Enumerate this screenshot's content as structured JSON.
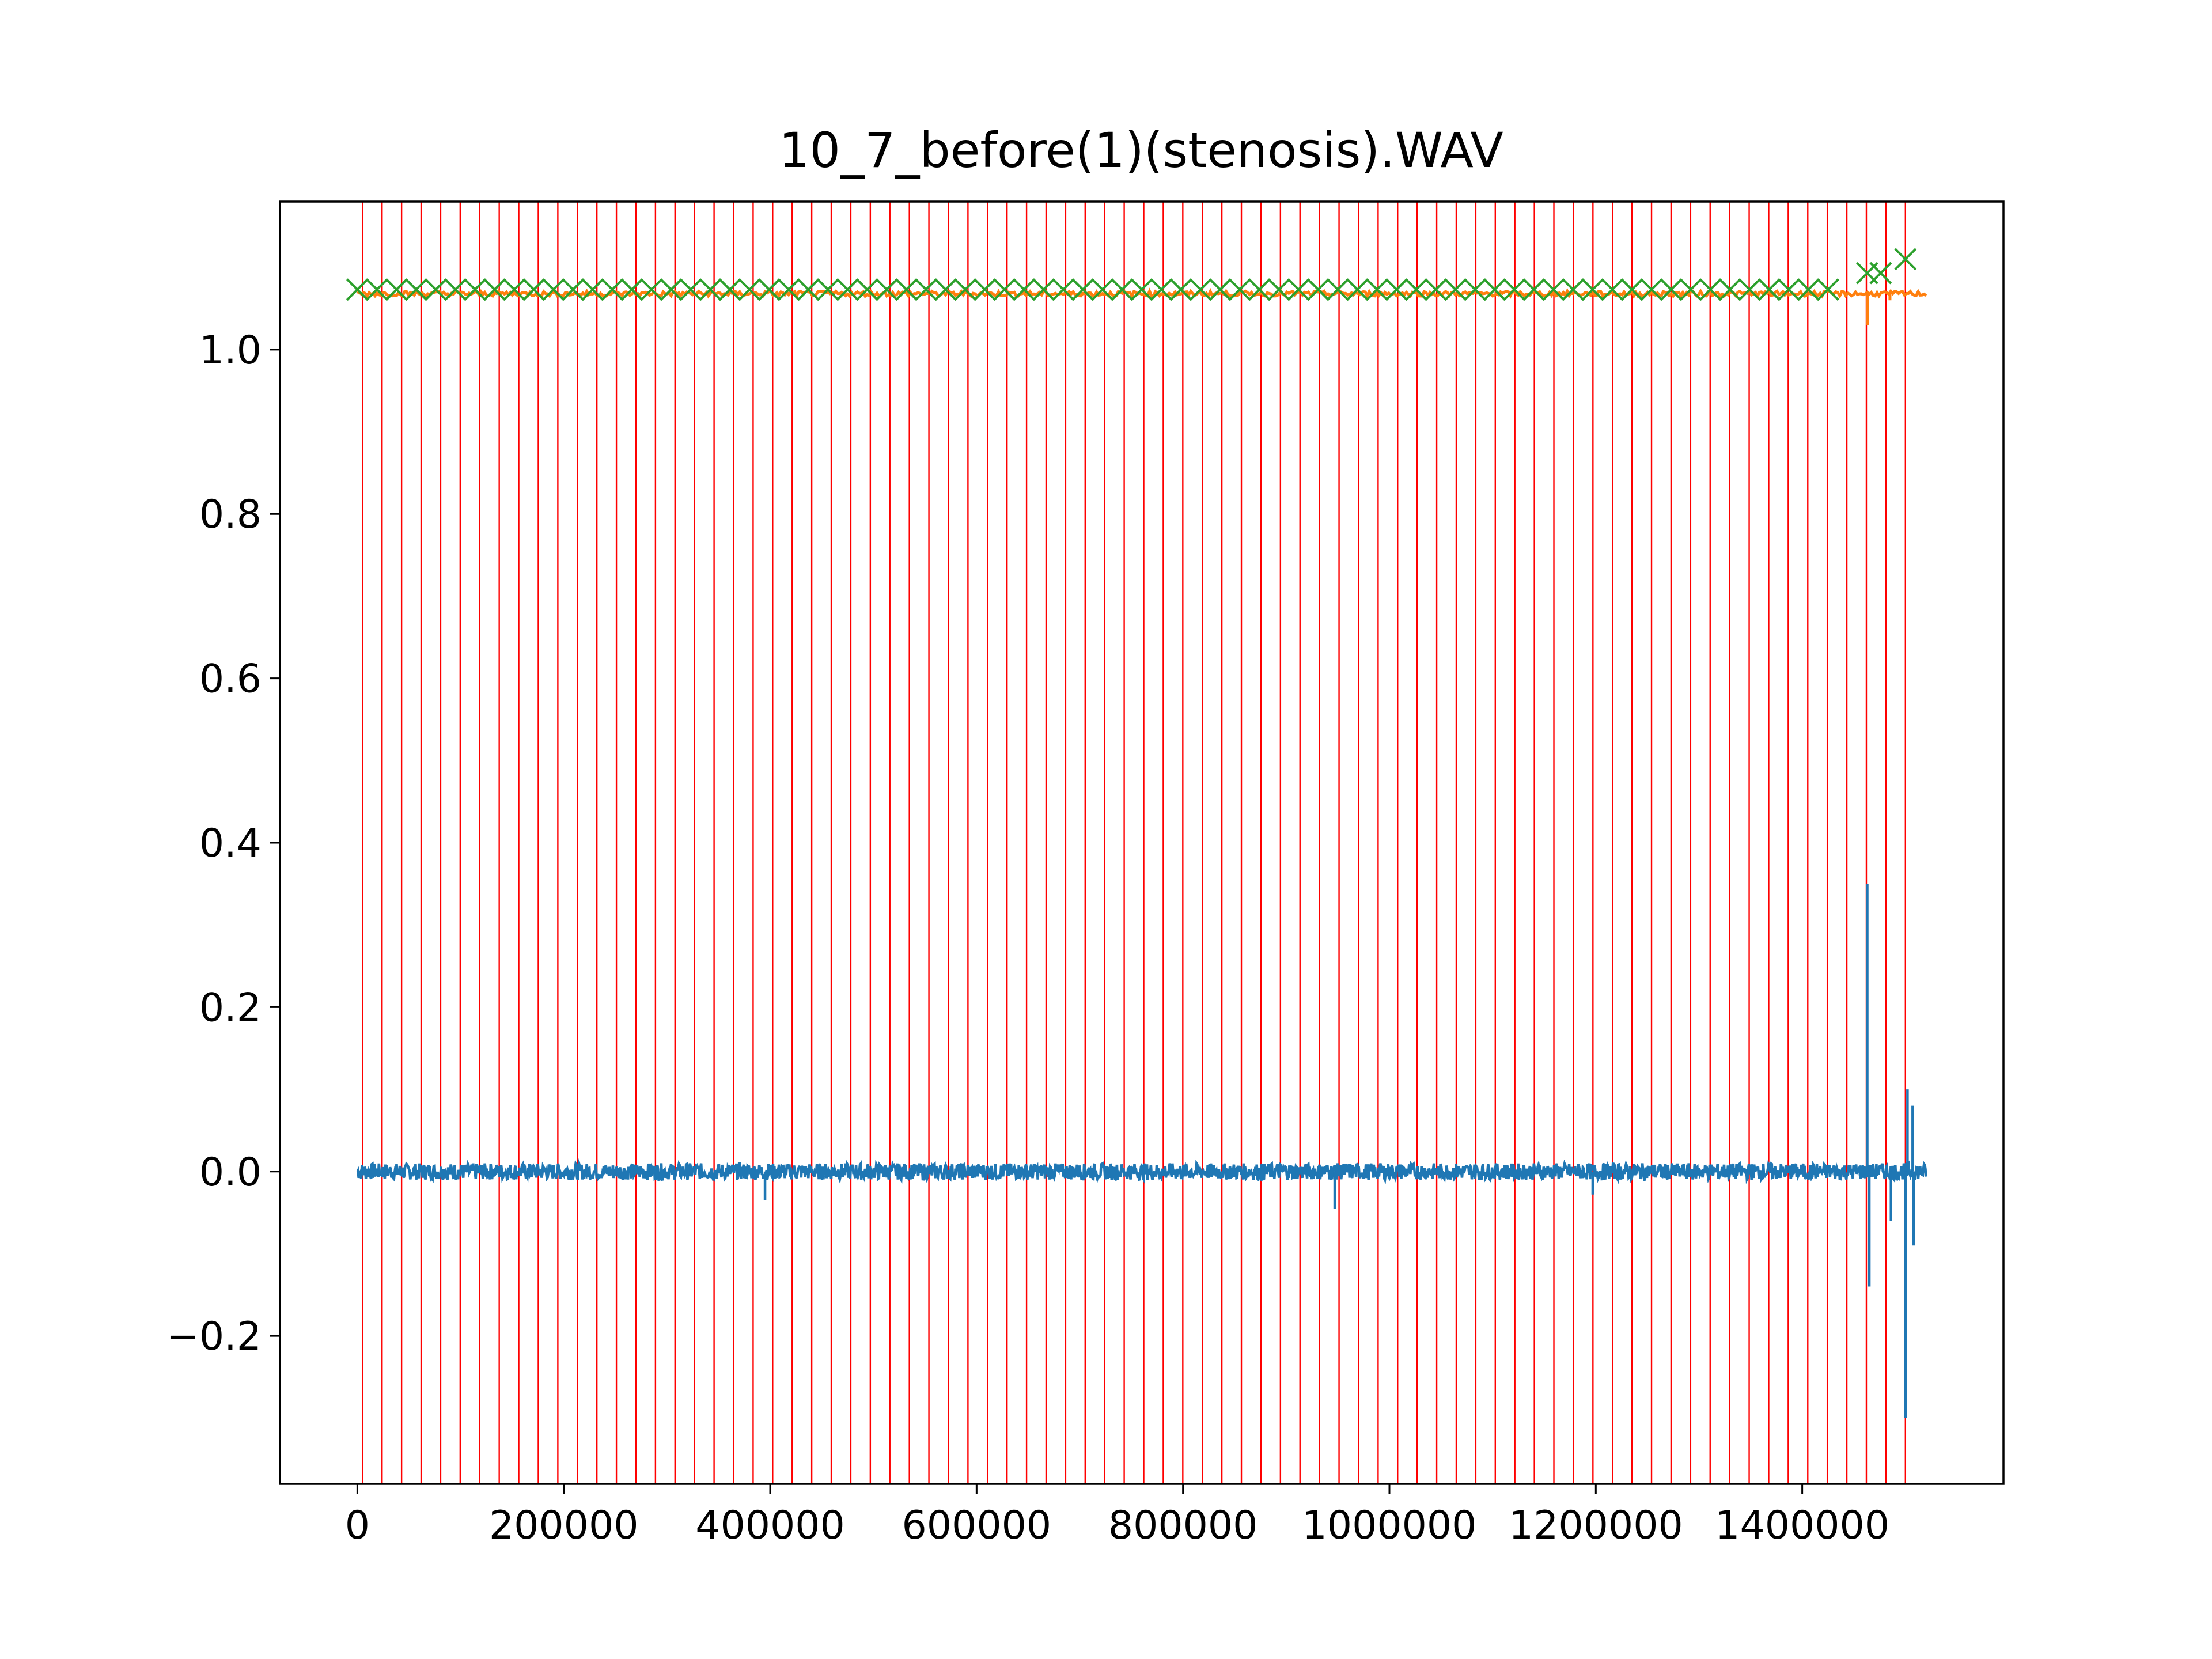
{
  "chart_data": {
    "type": "line",
    "title": "10_7_before(1)(stenosis).WAV",
    "xlabel": "",
    "ylabel": "",
    "xlim": [
      -75000,
      1595000
    ],
    "ylim": [
      -0.38,
      1.18
    ],
    "x_ticks": [
      0,
      200000,
      400000,
      600000,
      800000,
      1000000,
      1200000,
      1400000
    ],
    "x_tick_labels": [
      "0",
      "200000",
      "400000",
      "600000",
      "800000",
      "1000000",
      "1200000",
      "1400000"
    ],
    "y_ticks": [
      -0.2,
      0.0,
      0.2,
      0.4,
      0.6,
      0.8,
      1.0
    ],
    "y_tick_labels": [
      "−0.2",
      "0.0",
      "0.2",
      "0.4",
      "0.6",
      "0.8",
      "1.0"
    ],
    "grid": false,
    "legend": "none",
    "colors": {
      "signal": "#1f77b4",
      "envelope": "#ff7f0e",
      "peaks": "#2ca02c",
      "segment_lines": "#ff0000"
    },
    "segment_lines": {
      "description_x": "vertical red lines marking segment boundaries",
      "start": 5000,
      "end": 1500000,
      "count": 80
    },
    "series": [
      {
        "kind": "signal",
        "x_range": [
          0,
          1520000
        ],
        "baseline": 0.0,
        "typical_amplitude": 0.01,
        "spikes": [
          {
            "x": 395000,
            "y": -0.035
          },
          {
            "x": 947000,
            "y": -0.045
          },
          {
            "x": 1197000,
            "y": -0.028
          },
          {
            "x": 1463000,
            "y": 0.35
          },
          {
            "x": 1465000,
            "y": -0.14
          },
          {
            "x": 1486000,
            "y": -0.06
          },
          {
            "x": 1500000,
            "y": -0.3
          },
          {
            "x": 1502000,
            "y": 0.1
          },
          {
            "x": 1507000,
            "y": 0.08
          },
          {
            "x": 1508000,
            "y": -0.09
          }
        ]
      },
      {
        "kind": "envelope",
        "x_range": [
          0,
          1520000
        ],
        "level": 1.068,
        "dips": [
          {
            "x": 1463000,
            "y": 1.03
          },
          {
            "x": 1485000,
            "y": 1.06
          }
        ]
      },
      {
        "kind": "peaks",
        "marker": "x",
        "level": 1.073,
        "x_start": 0,
        "spacing": 19000,
        "count": 76,
        "extra": [
          {
            "x": 1463000,
            "y": 1.093
          },
          {
            "x": 1476000,
            "y": 1.093
          },
          {
            "x": 1500000,
            "y": 1.11
          }
        ]
      }
    ]
  }
}
